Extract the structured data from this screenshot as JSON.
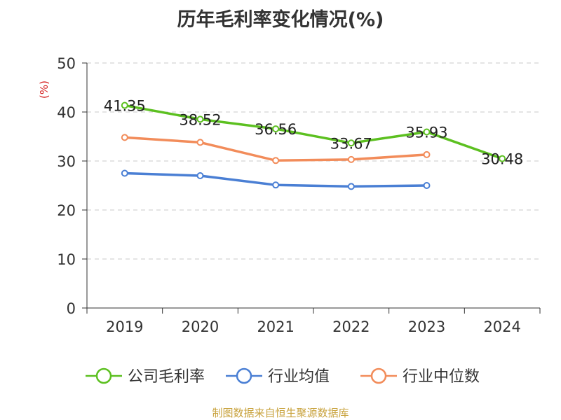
{
  "chart_data": {
    "type": "line",
    "title": "历年毛利率变化情况(%)",
    "ylabel": "(%)",
    "xlabel": "",
    "categories": [
      "2019",
      "2020",
      "2021",
      "2022",
      "2023",
      "2024"
    ],
    "ylim": [
      0,
      50
    ],
    "yticks": [
      0,
      10,
      20,
      30,
      40,
      50
    ],
    "grid": true,
    "legend_position": "bottom",
    "series": [
      {
        "name": "公司毛利率",
        "color": "#5cc020",
        "values": [
          41.35,
          38.52,
          36.56,
          33.67,
          35.93,
          30.48
        ],
        "labels": [
          "41.35",
          "38.52",
          "36.56",
          "33.67",
          "35.93",
          "30.48"
        ]
      },
      {
        "name": "行业均值",
        "color": "#4a7fd4",
        "values": [
          27.5,
          27.0,
          25.1,
          24.8,
          25.0,
          null
        ]
      },
      {
        "name": "行业中位数",
        "color": "#f28c5a",
        "values": [
          34.8,
          33.8,
          30.1,
          30.3,
          31.3,
          null
        ]
      }
    ]
  },
  "ylabel_color": "#d42020",
  "watermark": "制图数据来自恒生聚源数据库"
}
